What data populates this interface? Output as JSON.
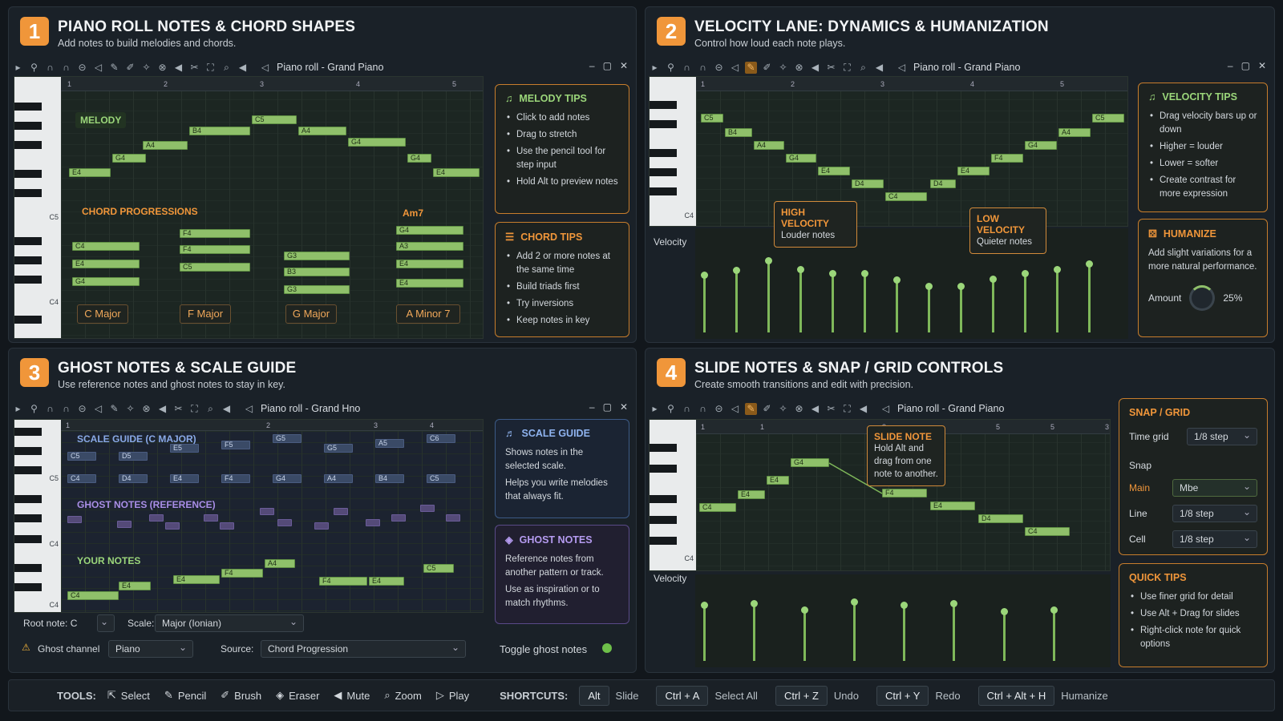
{
  "window_title": "Piano roll - Grand Piano",
  "window_title_variant": "Piano roll - Grand Hno",
  "panels": [
    {
      "num": "1",
      "title": "PIANO ROLL NOTES & CHORD SHAPES",
      "subtitle": "Add notes to build melodies and chords."
    },
    {
      "num": "2",
      "title": "VELOCITY LANE: DYNAMICS & HUMANIZATION",
      "subtitle": "Control how loud each note plays."
    },
    {
      "num": "3",
      "title": "GHOST NOTES & SCALE GUIDE",
      "subtitle": "Use reference notes and ghost notes to stay in key."
    },
    {
      "num": "4",
      "title": "SLIDE NOTES & SNAP / GRID CONTROLS",
      "subtitle": "Create smooth transitions and edit with precision."
    }
  ],
  "p1": {
    "melody_label": "MELODY",
    "chord_prog_label": "CHORD PROGRESSIONS",
    "am7_label": "Am7",
    "key_c5": "C5",
    "key_c4": "C4",
    "ruler": [
      "1",
      "2",
      "3",
      "4",
      "5"
    ],
    "melody_notes": [
      "E4",
      "G4",
      "A4",
      "B4",
      "C5",
      "A4",
      "G4",
      "G4",
      "E4"
    ],
    "chords": [
      [
        "C4",
        "E4",
        "G4"
      ],
      [
        "F4",
        "F4",
        "C5"
      ],
      [
        "G3",
        "B3",
        "G3"
      ],
      [
        "G4",
        "A3",
        "E4",
        "E4"
      ]
    ],
    "chord_buttons": [
      "C Major",
      "F Major",
      "G Major",
      "A Minor 7"
    ],
    "melody_tips": {
      "title": "MELODY TIPS",
      "items": [
        "Click to add notes",
        "Drag to stretch",
        "Use the pencil tool for step input",
        "Hold Alt to preview notes"
      ]
    },
    "chord_tips": {
      "title": "CHORD TIPS",
      "items": [
        "Add 2 or more notes at the same time",
        "Build triads first",
        "Try inversions",
        "Keep notes in key"
      ]
    }
  },
  "p2": {
    "key_c4": "C4",
    "ruler": [
      "1",
      "2",
      "3",
      "4",
      "5"
    ],
    "notes": [
      "C5",
      "B4",
      "A4",
      "G4",
      "E4",
      "D4",
      "C4",
      "D4",
      "E4",
      "F4",
      "G4",
      "A4",
      "C5"
    ],
    "velocity_label": "Velocity",
    "high": {
      "title": "HIGH VELOCITY",
      "desc": "Louder notes"
    },
    "low": {
      "title": "LOW VELOCITY",
      "desc": "Quieter notes"
    },
    "velocities": [
      0.6,
      0.65,
      0.75,
      0.66,
      0.62,
      0.62,
      0.55,
      0.48,
      0.48,
      0.56,
      0.62,
      0.66,
      0.72
    ],
    "velocity_tips": {
      "title": "VELOCITY TIPS",
      "items": [
        "Drag velocity bars up or down",
        "Higher = louder",
        "Lower = softer",
        "Create contrast for more expression"
      ]
    },
    "humanize": {
      "title": "HUMANIZE",
      "desc": "Add slight variations for a more natural performance.",
      "amount_label": "Amount",
      "amount_value": "25%",
      "amount": 0.25
    }
  },
  "p3": {
    "scale_label": "SCALE GUIDE (C MAJOR)",
    "ghost_label": "GHOST NOTES (REFERENCE)",
    "your_label": "YOUR NOTES",
    "key_c5": "C5",
    "key_c4a": "C4",
    "key_c4b": "C4",
    "ruler": [
      "1",
      "2",
      "3",
      "4"
    ],
    "scale_row1": [
      "C5",
      "D5",
      "E5",
      "F5",
      "G5",
      "G5",
      "A5",
      "C6"
    ],
    "scale_row2": [
      "C4",
      "D4",
      "E4",
      "F4",
      "G4",
      "A4",
      "B4",
      "C5"
    ],
    "your_notes": [
      "C4",
      "E4",
      "E4",
      "F4",
      "A4",
      "F4",
      "E4",
      "C5"
    ],
    "scale_guide": {
      "title": "SCALE GUIDE",
      "desc1": "Shows notes in the selected scale.",
      "desc2": "Helps you write melodies that always fit."
    },
    "ghost_notes": {
      "title": "GHOST NOTES",
      "desc1": "Reference notes from another pattern or track.",
      "desc2": "Use as inspiration or to match rhythms."
    },
    "root_label": "Root note: C",
    "scale_label2": "Scale:",
    "scale_value": "Major (Ionian)",
    "ghost_channel_label": "Ghost channel",
    "ghost_channel_value": "Piano",
    "source_label": "Source:",
    "source_value": "Chord Progression",
    "toggle_label": "Toggle ghost notes"
  },
  "p4": {
    "key_c4": "C4",
    "ruler": [
      "1",
      "1",
      "3",
      "5",
      "5",
      "3"
    ],
    "notes": [
      "C4",
      "E4",
      "E4",
      "G4",
      "F4",
      "E4",
      "D4",
      "C4"
    ],
    "slide": {
      "title": "SLIDE NOTE",
      "desc": "Hold Alt and drag from one note to another."
    },
    "velocity_label": "Velocity",
    "velocities": [
      0.72,
      0.74,
      0.66,
      0.76,
      0.72,
      0.74,
      0.64,
      0.66
    ],
    "snap": {
      "title": "SNAP / GRID",
      "time_grid_label": "Time grid",
      "time_grid_value": "1/8 step",
      "snap_label": "Snap",
      "main_label": "Main",
      "main_value": "Mbe",
      "line_label": "Line",
      "line_value": "1/8 step",
      "cell_label": "Cell",
      "cell_value": "1/8 step"
    },
    "quick_tips": {
      "title": "QUICK TIPS",
      "items": [
        "Use finer grid for detail",
        "Use Alt + Drag for slides",
        "Right-click note for quick options"
      ]
    }
  },
  "bottom": {
    "tools_label": "TOOLS:",
    "tools": [
      "Select",
      "Pencil",
      "Brush",
      "Eraser",
      "Mute",
      "Zoom",
      "Play"
    ],
    "shortcuts_label": "SHORTCUTS:",
    "shortcuts": [
      [
        "Alt",
        "Slide"
      ],
      [
        "Ctrl + A",
        "Select All"
      ],
      [
        "Ctrl + Z",
        "Undo"
      ],
      [
        "Ctrl + Y",
        "Redo"
      ],
      [
        "Ctrl + Alt + H",
        "Humanize"
      ]
    ]
  },
  "colors": {
    "accent": "#f0963a",
    "note": "#8fc06a",
    "panel": "#1a2128"
  }
}
